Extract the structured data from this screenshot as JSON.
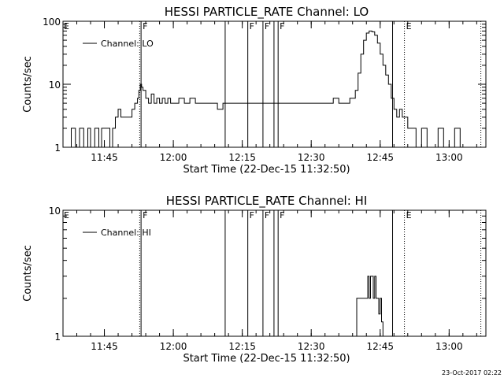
{
  "footer": {
    "timestamp": "23-Oct-2017 02:22"
  },
  "chart_data": [
    {
      "type": "line",
      "title": "HESSI PARTICLE_RATE Channel: LO",
      "xlabel": "Start Time (22-Dec-15 11:32:50)",
      "ylabel": "Counts/sec",
      "yscale": "log",
      "xlim": [
        11.6,
        13.1333
      ],
      "ylim": [
        1,
        100
      ],
      "x_ticks": [
        11.75,
        12.0,
        12.25,
        12.5,
        12.75,
        13.0
      ],
      "x_tick_labels": [
        "11:45",
        "12:00",
        "12:15",
        "12:30",
        "12:45",
        "13:00"
      ],
      "y_ticks": [
        1,
        10,
        100
      ],
      "y_tick_labels": [
        "1",
        "10",
        "100"
      ],
      "legend": {
        "label": "Channel: LO",
        "position": "top-left"
      },
      "series": [
        {
          "x": [
            11.61,
            11.63,
            11.645,
            11.66,
            11.675,
            11.69,
            11.7,
            11.715,
            11.73,
            11.74,
            11.75,
            11.76,
            11.77,
            11.78,
            11.79,
            11.8,
            11.81,
            11.82,
            11.83,
            11.84,
            11.85,
            11.86,
            11.87,
            11.875,
            11.88,
            11.885,
            11.89,
            11.9,
            11.91,
            11.92,
            11.93,
            11.94,
            11.95,
            11.96,
            11.97,
            11.98,
            11.99,
            12.0,
            12.02,
            12.04,
            12.06,
            12.08,
            12.1,
            12.12,
            12.14,
            12.16,
            12.18,
            12.2,
            12.22,
            12.24,
            12.26,
            12.28,
            12.3,
            12.32,
            12.34,
            12.36,
            12.38,
            12.4,
            12.42,
            12.44,
            12.46,
            12.48,
            12.5,
            12.52,
            12.54,
            12.56,
            12.58,
            12.6,
            12.62,
            12.64,
            12.66,
            12.67,
            12.68,
            12.69,
            12.7,
            12.71,
            12.72,
            12.73,
            12.74,
            12.75,
            12.76,
            12.77,
            12.78,
            12.79,
            12.8,
            12.81,
            12.82,
            12.83,
            12.84,
            12.85,
            12.86,
            12.87,
            12.88,
            12.9,
            12.92,
            12.94,
            12.96,
            12.98,
            13.0,
            13.02,
            13.04,
            13.06,
            13.08,
            13.1,
            13.13
          ],
          "y": [
            1,
            2,
            1,
            2,
            1,
            2,
            1,
            2,
            1,
            2,
            2,
            2,
            1,
            2,
            3,
            4,
            3,
            3,
            3,
            3,
            4,
            5,
            6,
            8,
            10,
            9,
            8,
            6,
            5,
            7,
            5,
            6,
            5,
            6,
            5,
            6,
            5,
            5,
            6,
            5,
            6,
            5,
            5,
            5,
            5,
            4,
            5,
            5,
            5,
            5,
            5,
            5,
            5,
            5,
            5,
            5,
            5,
            5,
            5,
            5,
            5,
            5,
            5,
            5,
            5,
            5,
            6,
            5,
            5,
            6,
            8,
            15,
            30,
            50,
            65,
            70,
            68,
            60,
            45,
            30,
            20,
            14,
            10,
            6,
            4,
            3,
            4,
            3,
            3,
            2,
            2,
            2,
            1,
            2,
            1,
            1,
            2,
            1,
            1,
            2,
            1,
            1,
            1,
            1,
            1
          ]
        }
      ],
      "markers": [
        {
          "x": 11.878,
          "style": "dotted",
          "label": ""
        },
        {
          "x": 11.883,
          "style": "solid",
          "label": "F"
        },
        {
          "x": 12.188,
          "style": "solid",
          "label": ""
        },
        {
          "x": 12.27,
          "style": "solid",
          "label": "F"
        },
        {
          "x": 12.325,
          "style": "solid",
          "label": "F"
        },
        {
          "x": 12.365,
          "style": "solid",
          "label": ""
        },
        {
          "x": 12.38,
          "style": "solid",
          "label": "F"
        },
        {
          "x": 12.795,
          "style": "solid",
          "label": ""
        },
        {
          "x": 12.838,
          "style": "dotted",
          "label": "E"
        },
        {
          "x": 13.115,
          "style": "dotted",
          "label": ""
        }
      ],
      "left_label": "E"
    },
    {
      "type": "line",
      "title": "HESSI PARTICLE_RATE Channel: HI",
      "xlabel": "Start Time (22-Dec-15 11:32:50)",
      "ylabel": "Counts/sec",
      "yscale": "log",
      "xlim": [
        11.6,
        13.1333
      ],
      "ylim": [
        1,
        10
      ],
      "x_ticks": [
        11.75,
        12.0,
        12.25,
        12.5,
        12.75,
        13.0
      ],
      "x_tick_labels": [
        "11:45",
        "12:00",
        "12:15",
        "12:30",
        "12:45",
        "13:00"
      ],
      "y_ticks": [
        1,
        10
      ],
      "y_tick_labels": [
        "1",
        "10"
      ],
      "legend": {
        "label": "Channel: HI",
        "position": "top-left"
      },
      "series": [
        {
          "x": [
            12.66,
            12.665,
            12.7,
            12.705,
            12.71,
            12.715,
            12.72,
            12.725,
            12.73,
            12.735,
            12.74,
            12.745,
            12.75,
            12.755,
            12.76,
            12.77
          ],
          "y": [
            1,
            2,
            2,
            3,
            2,
            3,
            3,
            2,
            3,
            2,
            2,
            1.5,
            2,
            1.3,
            1,
            1
          ]
        }
      ],
      "markers": [
        {
          "x": 11.878,
          "style": "dotted",
          "label": ""
        },
        {
          "x": 11.883,
          "style": "solid",
          "label": "F"
        },
        {
          "x": 12.188,
          "style": "solid",
          "label": ""
        },
        {
          "x": 12.27,
          "style": "solid",
          "label": "F"
        },
        {
          "x": 12.325,
          "style": "solid",
          "label": "F"
        },
        {
          "x": 12.365,
          "style": "solid",
          "label": ""
        },
        {
          "x": 12.38,
          "style": "solid",
          "label": "F"
        },
        {
          "x": 12.795,
          "style": "solid",
          "label": ""
        },
        {
          "x": 12.838,
          "style": "dotted",
          "label": "E"
        },
        {
          "x": 13.115,
          "style": "dotted",
          "label": ""
        }
      ],
      "left_label": "E"
    }
  ]
}
